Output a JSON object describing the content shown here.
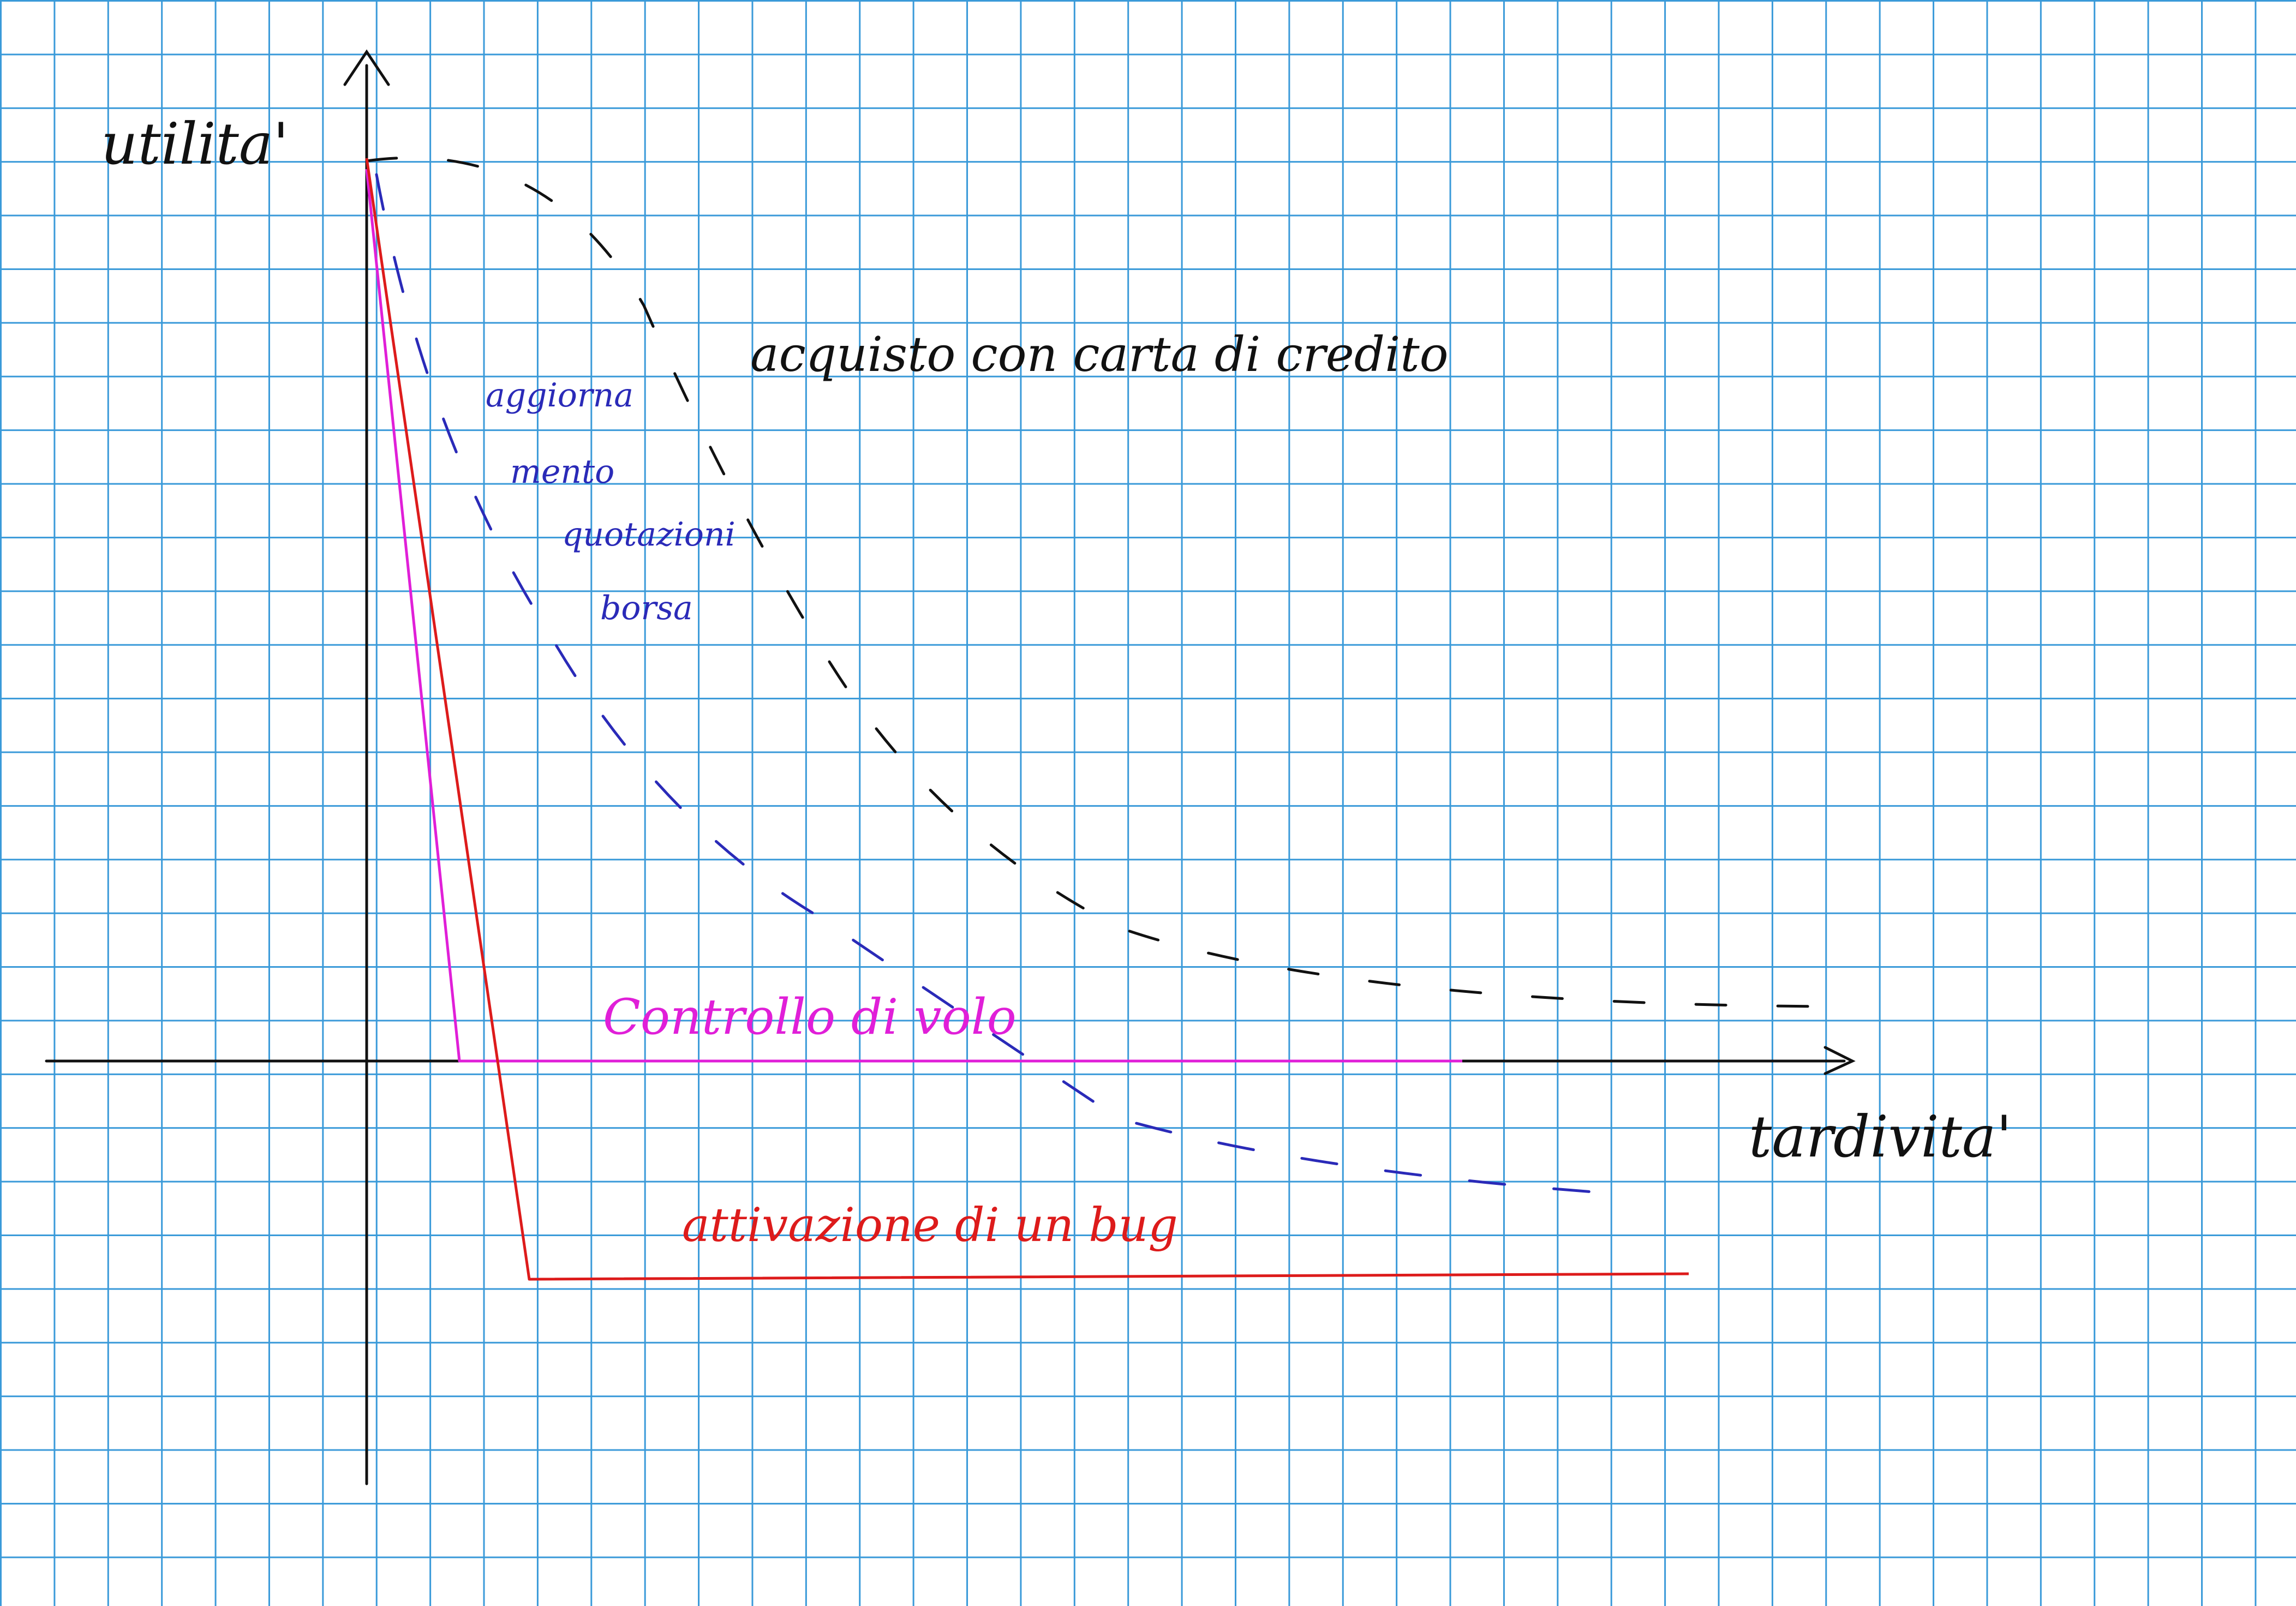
{
  "axes": {
    "y_label": "utilita'",
    "x_label": "tardivita'"
  },
  "curves": [
    {
      "id": "acquisto",
      "label": "acquisto con carta di credito",
      "color": "#111111",
      "style": "dashed"
    },
    {
      "id": "quotazioni",
      "label_lines": [
        "aggiorna",
        "mento",
        "quotazioni",
        "borsa"
      ],
      "color": "#2a2ab8",
      "style": "dashed"
    },
    {
      "id": "volo",
      "label": "Controllo di volo",
      "color": "#e01fd8",
      "style": "solid"
    },
    {
      "id": "bug",
      "label": "attivazione di un bug",
      "color": "#dd1b1b",
      "style": "solid"
    }
  ],
  "colors": {
    "grid": "#3a9ad9",
    "axis": "#111111"
  }
}
